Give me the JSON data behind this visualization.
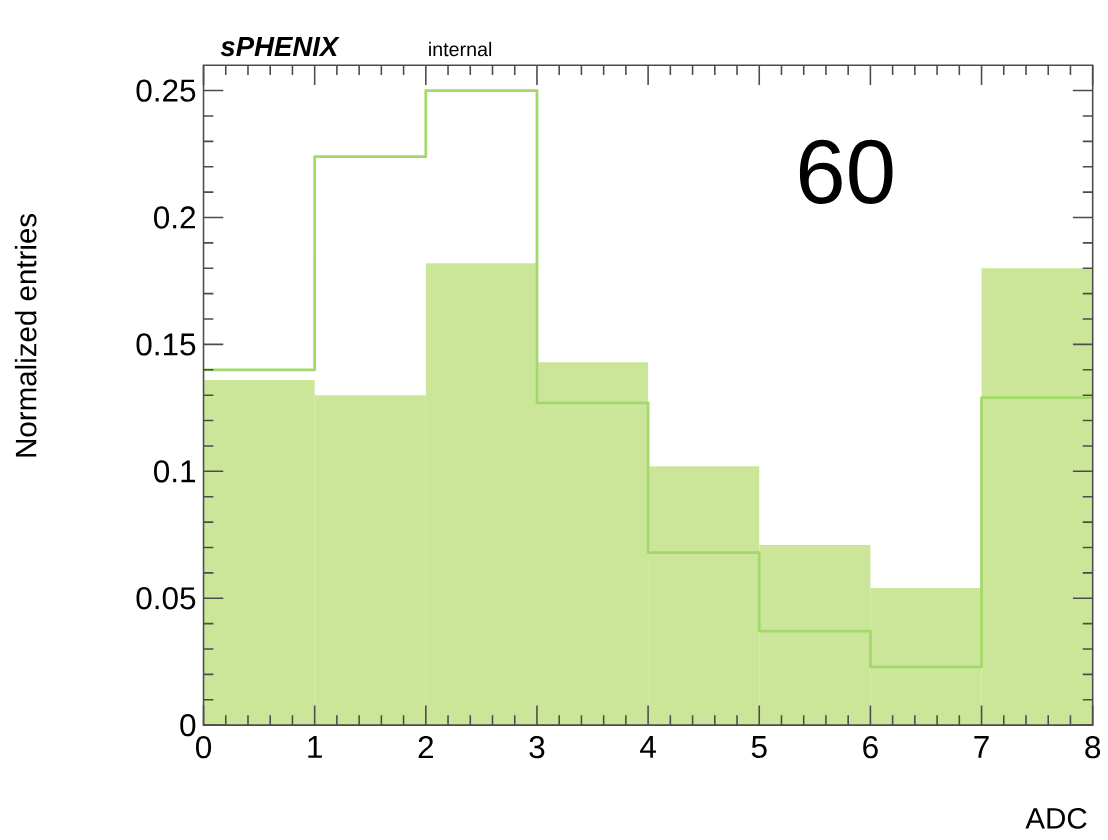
{
  "chart_data": {
    "type": "histogram",
    "xlabel": "ADC",
    "ylabel": "Normalized entries",
    "annotations": [
      "sPHENIX",
      "internal",
      "60"
    ],
    "bins": [
      0,
      1,
      2,
      3,
      4,
      5,
      6,
      7,
      8
    ],
    "series": [
      {
        "color": "#cce699",
        "values": [
          0.136,
          0.13,
          0.182,
          0.143,
          0.102,
          0.071,
          0.054,
          0.18
        ]
      },
      {
        "type": "step",
        "color": "#a3d96b",
        "x": [
          0,
          1,
          2,
          3,
          4,
          5,
          6,
          7,
          8
        ],
        "values": [
          0.14,
          0.224,
          0.25,
          0.127,
          0.068,
          0.037,
          0.023,
          0.129,
          0.129
        ]
      }
    ],
    "xlim": [
      0,
      8
    ],
    "ylim": [
      0,
      0.26
    ],
    "xticks": [
      0,
      1,
      2,
      3,
      4,
      5,
      6,
      7,
      8
    ],
    "yticks": [
      0,
      0.05,
      0.1,
      0.15,
      0.2,
      0.25
    ],
    "grid": false
  }
}
